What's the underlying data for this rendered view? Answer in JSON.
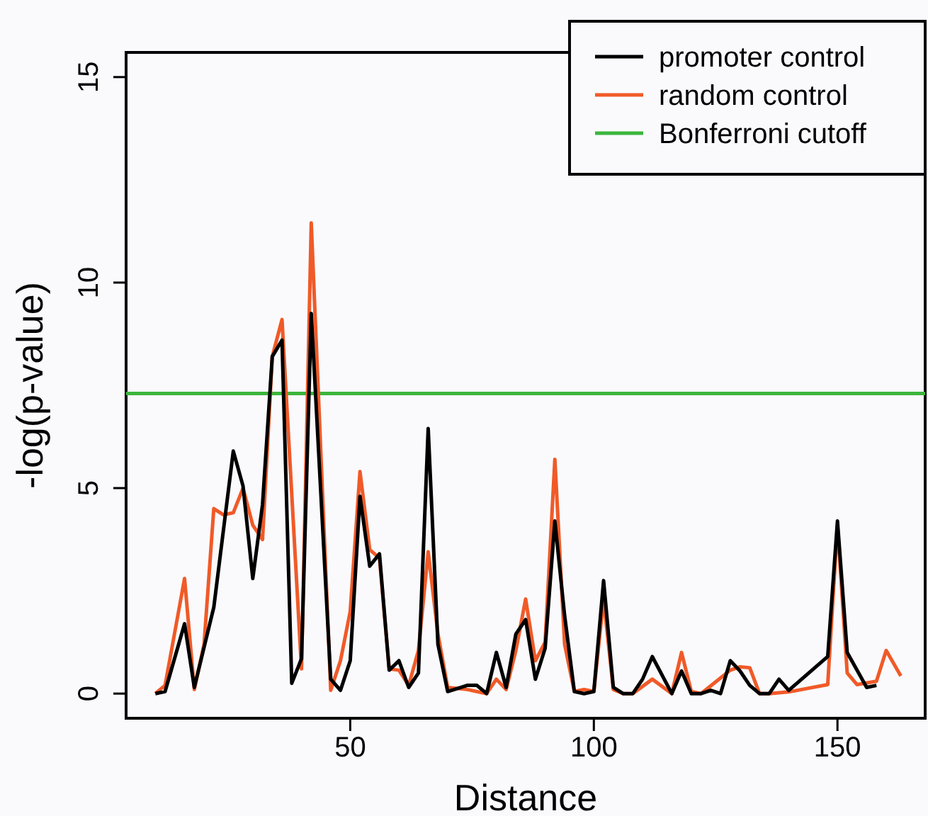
{
  "chart_data": {
    "type": "line",
    "xlabel": "Distance",
    "ylabel": "-log(p-value)",
    "xlim": [
      4,
      168
    ],
    "xticks": [
      50,
      100,
      150
    ],
    "ylim": [
      -0.6,
      15.6
    ],
    "yticks": [
      0,
      5,
      10,
      15
    ],
    "grid": false,
    "legend": "top right",
    "marker": "none",
    "line_style": "solid",
    "series": [
      {
        "name": "promoter control",
        "color": "#000000",
        "x": [
          10,
          12,
          16,
          18,
          22,
          26,
          28,
          30,
          32,
          34,
          36,
          38,
          40,
          42,
          46,
          48,
          50,
          52,
          54,
          56,
          58,
          60,
          62,
          64,
          66,
          68,
          70,
          74,
          76,
          78,
          80,
          82,
          84,
          86,
          88,
          90,
          92,
          94,
          96,
          98,
          100,
          102,
          104,
          106,
          108,
          110,
          112,
          116,
          118,
          120,
          122,
          124,
          126,
          128,
          130,
          132,
          134,
          136,
          138,
          140,
          148,
          150,
          152,
          156,
          158
        ],
        "values": [
          0,
          0.05,
          1.7,
          0.15,
          2.1,
          5.9,
          5.05,
          2.8,
          4.6,
          8.2,
          8.6,
          0.25,
          0.85,
          9.25,
          0.35,
          0.08,
          0.8,
          4.8,
          3.1,
          3.4,
          0.57,
          0.8,
          0.15,
          0.5,
          6.45,
          1.2,
          0.05,
          0.2,
          0.2,
          0,
          1.0,
          0.15,
          1.45,
          1.8,
          0.35,
          1.1,
          4.2,
          1.9,
          0.05,
          0,
          0.05,
          2.75,
          0.15,
          0,
          0,
          0.35,
          0.9,
          0,
          0.55,
          0,
          0,
          0.08,
          0,
          0.8,
          0.55,
          0.2,
          0,
          0,
          0.35,
          0.08,
          0.9,
          4.2,
          1.0,
          0.15,
          0.2
        ]
      },
      {
        "name": "random control",
        "color": "#f05a28",
        "x": [
          10,
          12,
          16,
          18,
          20,
          22,
          24,
          26,
          28,
          30,
          32,
          34,
          36,
          40,
          42,
          46,
          48,
          50,
          52,
          54,
          56,
          58,
          60,
          62,
          64,
          66,
          68,
          70,
          74,
          78,
          80,
          82,
          84,
          86,
          88,
          90,
          92,
          94,
          96,
          98,
          100,
          102,
          104,
          106,
          108,
          112,
          116,
          118,
          120,
          122,
          128,
          130,
          132,
          134,
          136,
          140,
          148,
          150,
          152,
          154,
          158,
          160,
          163
        ],
        "values": [
          0,
          0.2,
          2.8,
          0.1,
          1.2,
          4.5,
          4.35,
          4.4,
          5.0,
          4.1,
          3.75,
          8.2,
          9.1,
          0.6,
          11.45,
          0.08,
          0.8,
          2.0,
          5.4,
          3.5,
          3.3,
          0.6,
          0.57,
          0.2,
          1.05,
          3.45,
          1.45,
          0.15,
          0.1,
          0,
          0.35,
          0.1,
          1.05,
          2.3,
          0.8,
          1.25,
          5.7,
          1.2,
          0.05,
          0.1,
          0.05,
          2.3,
          0.1,
          0,
          0,
          0.35,
          0,
          1.0,
          0.05,
          0,
          0.57,
          0.65,
          0.63,
          0,
          0,
          0.04,
          0.22,
          4.1,
          0.5,
          0.22,
          0.3,
          1.05,
          0.43
        ]
      },
      {
        "name": "Bonferroni cutoff",
        "color": "#3cb53c",
        "x": [
          4,
          168
        ],
        "values": [
          7.3,
          7.3
        ]
      }
    ]
  }
}
